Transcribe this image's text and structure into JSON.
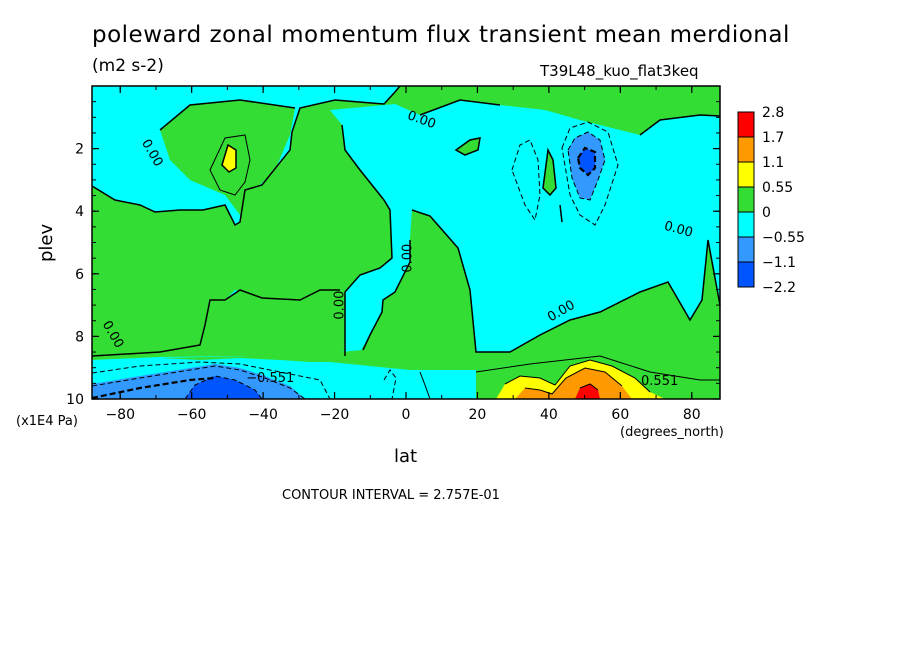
{
  "chart_data": {
    "type": "heatmap",
    "title": "poleward zonal momentum flux transient mean merdional",
    "units": "(m2 s-2)",
    "dataset": "T39L48_kuo_flat3keq",
    "xlabel": "lat",
    "x_units": "(degrees_north)",
    "ylabel": "plev",
    "y_units": "(x1E4 Pa)",
    "contour_interval_text": "CONTOUR INTERVAL = 2.757E-01",
    "xlim": [
      -87.9,
      87.9
    ],
    "ylim": [
      10,
      0
    ],
    "x_ticks": [
      "-80",
      "-60",
      "-40",
      "-20",
      "0",
      "20",
      "40",
      "60",
      "80"
    ],
    "y_ticks": [
      "2",
      "4",
      "6",
      "8",
      "10"
    ],
    "colorbar": {
      "labels": [
        "2.8",
        "1.7",
        "1.1",
        "0.55",
        "0",
        "-0.55",
        "-1.1",
        "-2.2"
      ],
      "colors": [
        "#ff0000",
        "#ff9900",
        "#ffff00",
        "#33dd33",
        "#00ffff",
        "#3399ff",
        "#0055ff"
      ]
    },
    "contour_labels": [
      {
        "text": "0.00",
        "lat": -72,
        "plev": 2.2
      },
      {
        "text": "0.00",
        "lat": 4,
        "plev": 1.2
      },
      {
        "text": "0.00",
        "lat": 76,
        "plev": 4.7
      },
      {
        "text": "0.00",
        "lat": 1.5,
        "plev": 5.5
      },
      {
        "text": "0.00",
        "lat": -17.5,
        "plev": 7.0
      },
      {
        "text": "0.00",
        "lat": 44,
        "plev": 7.3
      },
      {
        "text": "0.00",
        "lat": -83,
        "plev": 8.0
      },
      {
        "text": "-0.551",
        "lat": -38,
        "plev": 9.45
      },
      {
        "text": "0.551",
        "lat": 71,
        "plev": 9.55
      }
    ]
  }
}
